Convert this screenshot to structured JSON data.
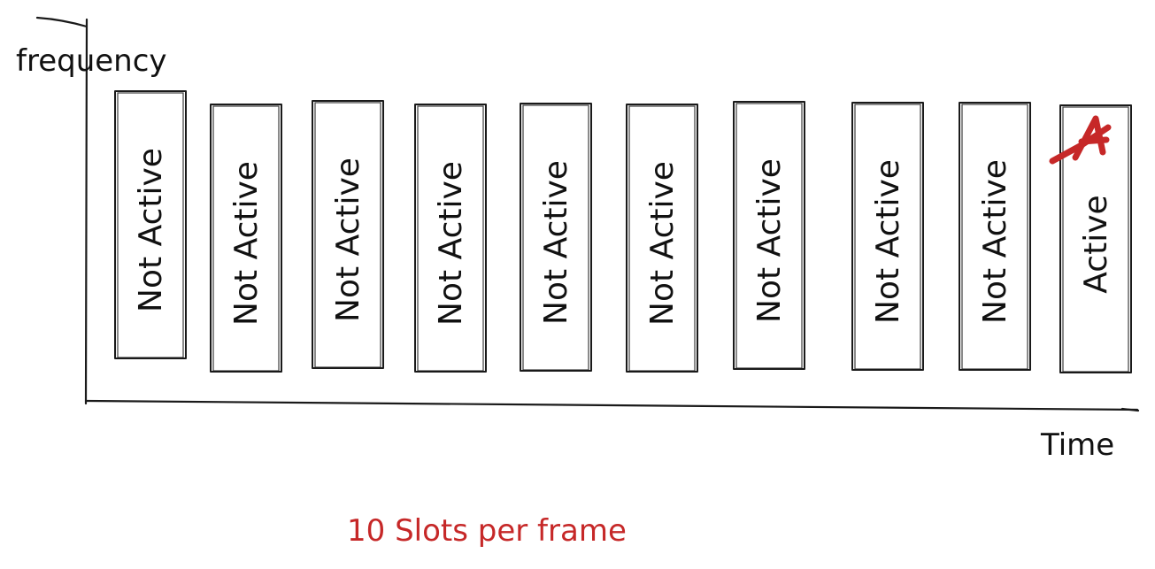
{
  "axes": {
    "y_label": "frequency",
    "x_label": "Time"
  },
  "slots": [
    {
      "label": "Not Active",
      "active": false
    },
    {
      "label": "Not Active",
      "active": false
    },
    {
      "label": "Not Active",
      "active": false
    },
    {
      "label": "Not Active",
      "active": false
    },
    {
      "label": "Not Active",
      "active": false
    },
    {
      "label": "Not Active",
      "active": false
    },
    {
      "label": "Not Active",
      "active": false
    },
    {
      "label": "Not Active",
      "active": false
    },
    {
      "label": "Not Active",
      "active": false
    },
    {
      "label": "Active",
      "active": true
    }
  ],
  "caption": "10 Slots per frame",
  "colors": {
    "ink": "#1a1a1a",
    "accent": "#c62828"
  },
  "marker_icon": "letter-a-mark-icon"
}
